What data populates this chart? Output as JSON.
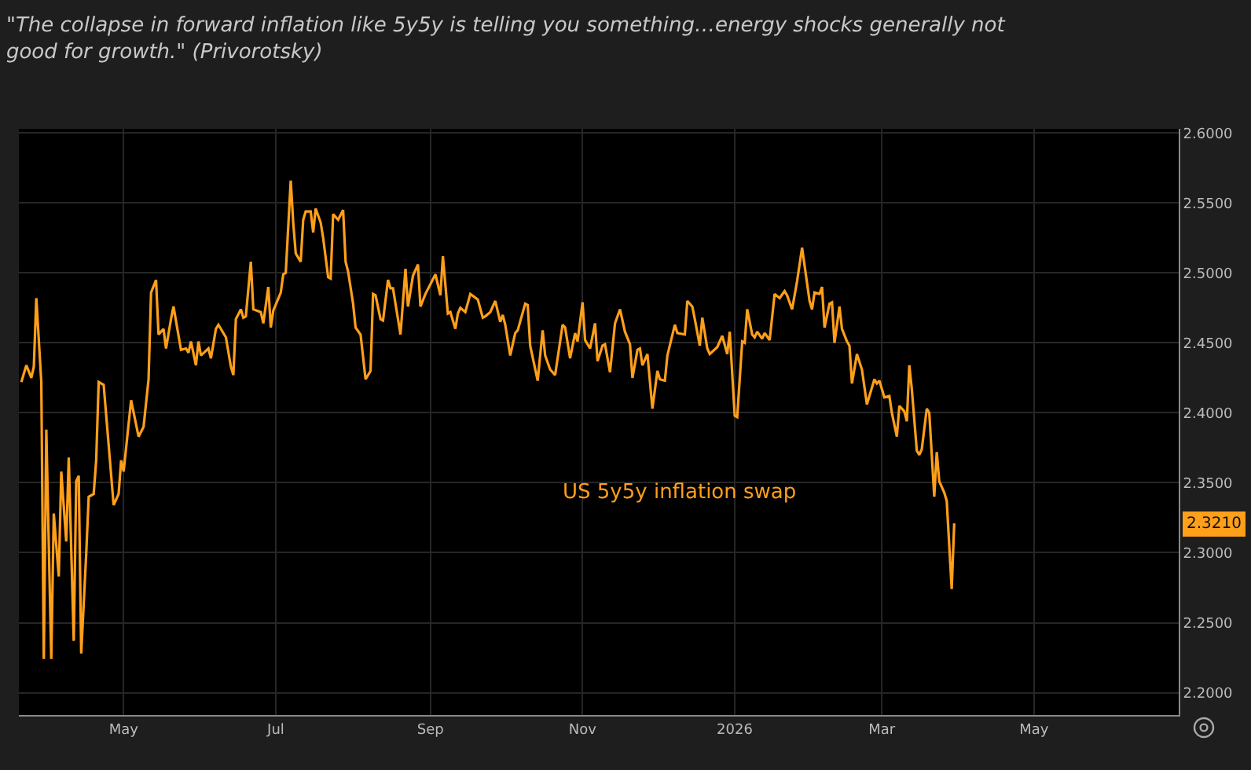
{
  "chart_data": {
    "type": "line",
    "title": "\"The collapse in forward inflation like 5y5y is telling you something…energy shocks generally not good for growth.\" (Privorotsky)",
    "x": [
      "2025-03-21",
      "2025-03-23",
      "2025-03-25",
      "2025-03-26",
      "2025-03-27",
      "2025-03-29",
      "2025-03-30",
      "2025-03-31",
      "2025-04-02",
      "2025-04-03",
      "2025-04-05",
      "2025-04-06",
      "2025-04-08",
      "2025-04-09",
      "2025-04-11",
      "2025-04-12",
      "2025-04-13",
      "2025-04-14",
      "2025-04-16",
      "2025-04-17",
      "2025-04-19",
      "2025-04-20",
      "2025-04-21",
      "2025-04-23",
      "2025-04-27",
      "2025-04-29",
      "2025-04-30",
      "2025-05-01",
      "2025-05-04",
      "2025-05-07",
      "2025-05-09",
      "2025-05-11",
      "2025-05-12",
      "2025-05-14",
      "2025-05-15",
      "2025-05-17",
      "2025-05-18",
      "2025-05-20",
      "2025-05-21",
      "2025-05-24",
      "2025-05-26",
      "2025-05-27",
      "2025-05-28",
      "2025-05-30",
      "2025-05-31",
      "2025-06-01",
      "2025-06-04",
      "2025-06-05",
      "2025-06-07",
      "2025-06-08",
      "2025-06-11",
      "2025-06-13",
      "2025-06-14",
      "2025-06-15",
      "2025-06-17",
      "2025-06-18",
      "2025-06-19",
      "2025-06-21",
      "2025-06-22",
      "2025-06-25",
      "2025-06-26",
      "2025-06-28",
      "2025-06-29",
      "2025-06-30",
      "2025-07-03",
      "2025-07-04",
      "2025-07-05",
      "2025-07-07",
      "2025-07-08",
      "2025-07-09",
      "2025-07-11",
      "2025-07-12",
      "2025-07-13",
      "2025-07-15",
      "2025-07-16",
      "2025-07-17",
      "2025-07-19",
      "2025-07-20",
      "2025-07-22",
      "2025-07-23",
      "2025-07-24",
      "2025-07-26",
      "2025-07-28",
      "2025-07-29",
      "2025-07-30",
      "2025-08-01",
      "2025-08-02",
      "2025-08-04",
      "2025-08-06",
      "2025-08-08",
      "2025-08-09",
      "2025-08-10",
      "2025-08-12",
      "2025-08-13",
      "2025-08-15",
      "2025-08-16",
      "2025-08-17",
      "2025-08-19",
      "2025-08-20",
      "2025-08-22",
      "2025-08-23",
      "2025-08-25",
      "2025-08-27",
      "2025-08-28",
      "2025-08-30",
      "2025-09-03",
      "2025-09-05",
      "2025-09-06",
      "2025-09-08",
      "2025-09-09",
      "2025-09-11",
      "2025-09-12",
      "2025-09-13",
      "2025-09-15",
      "2025-09-17",
      "2025-09-20",
      "2025-09-22",
      "2025-09-23",
      "2025-09-25",
      "2025-09-27",
      "2025-09-29",
      "2025-09-30",
      "2025-10-01",
      "2025-10-03",
      "2025-10-05",
      "2025-10-06",
      "2025-10-09",
      "2025-10-10",
      "2025-10-11",
      "2025-10-14",
      "2025-10-16",
      "2025-10-17",
      "2025-10-19",
      "2025-10-21",
      "2025-10-24",
      "2025-10-25",
      "2025-10-27",
      "2025-10-29",
      "2025-10-30",
      "2025-11-01",
      "2025-11-02",
      "2025-11-04",
      "2025-11-06",
      "2025-11-07",
      "2025-11-09",
      "2025-11-10",
      "2025-11-12",
      "2025-11-14",
      "2025-11-16",
      "2025-11-18",
      "2025-11-20",
      "2025-11-21",
      "2025-11-23",
      "2025-11-24",
      "2025-11-25",
      "2025-11-27",
      "2025-11-29",
      "2025-12-01",
      "2025-12-02",
      "2025-12-04",
      "2025-12-05",
      "2025-12-08",
      "2025-12-09",
      "2025-12-12",
      "2025-12-13",
      "2025-12-15",
      "2025-12-16",
      "2025-12-18",
      "2025-12-19",
      "2025-12-21",
      "2025-12-22",
      "2025-12-25",
      "2025-12-27",
      "2025-12-29",
      "2025-12-30",
      "2026-01-01",
      "2026-01-02",
      "2026-01-04",
      "2026-01-05",
      "2026-01-06",
      "2026-01-08",
      "2026-01-09",
      "2026-01-10",
      "2026-01-12",
      "2026-01-13",
      "2026-01-15",
      "2026-01-17",
      "2026-01-19",
      "2026-01-21",
      "2026-01-22",
      "2026-01-24",
      "2026-01-26",
      "2026-01-28",
      "2026-01-31",
      "2026-02-01",
      "2026-02-02",
      "2026-02-04",
      "2026-02-05",
      "2026-02-06",
      "2026-02-08",
      "2026-02-09",
      "2026-02-10",
      "2026-02-12",
      "2026-02-13",
      "2026-02-15",
      "2026-02-16",
      "2026-02-17",
      "2026-02-19",
      "2026-02-21",
      "2026-02-23",
      "2026-02-24",
      "2026-02-26",
      "2026-02-27",
      "2026-02-28",
      "2026-03-02",
      "2026-03-04",
      "2026-03-05",
      "2026-03-07",
      "2026-03-08",
      "2026-03-10",
      "2026-03-11",
      "2026-03-12",
      "2026-03-13",
      "2026-03-15",
      "2026-03-16",
      "2026-03-17",
      "2026-03-19",
      "2026-03-20",
      "2026-03-22",
      "2026-03-23",
      "2026-03-24",
      "2026-03-26",
      "2026-03-27",
      "2026-03-29",
      "2026-03-30"
    ],
    "series": [
      {
        "name": "US 5y5y inflation swap",
        "color": "#ff9f1a",
        "values": [
          2.422,
          2.434,
          2.425,
          2.433,
          2.482,
          2.422,
          2.224,
          2.388,
          2.224,
          2.328,
          2.283,
          2.358,
          2.308,
          2.368,
          2.237,
          2.351,
          2.355,
          2.228,
          2.299,
          2.34,
          2.342,
          2.366,
          2.422,
          2.42,
          2.334,
          2.342,
          2.366,
          2.358,
          2.409,
          2.383,
          2.39,
          2.424,
          2.486,
          2.495,
          2.456,
          2.46,
          2.446,
          2.467,
          2.476,
          2.445,
          2.446,
          2.443,
          2.451,
          2.434,
          2.451,
          2.441,
          2.446,
          2.439,
          2.46,
          2.463,
          2.454,
          2.433,
          2.427,
          2.467,
          2.474,
          2.468,
          2.469,
          2.508,
          2.474,
          2.472,
          2.464,
          2.49,
          2.461,
          2.473,
          2.486,
          2.499,
          2.5,
          2.566,
          2.536,
          2.514,
          2.508,
          2.538,
          2.544,
          2.544,
          2.529,
          2.546,
          2.536,
          2.525,
          2.497,
          2.496,
          2.542,
          2.538,
          2.545,
          2.508,
          2.501,
          2.478,
          2.461,
          2.456,
          2.424,
          2.43,
          2.485,
          2.484,
          2.467,
          2.466,
          2.495,
          2.489,
          2.489,
          2.467,
          2.456,
          2.503,
          2.476,
          2.498,
          2.506,
          2.476,
          2.485,
          2.499,
          2.484,
          2.512,
          2.471,
          2.472,
          2.46,
          2.471,
          2.475,
          2.472,
          2.485,
          2.481,
          2.468,
          2.469,
          2.472,
          2.48,
          2.465,
          2.47,
          2.463,
          2.441,
          2.457,
          2.459,
          2.478,
          2.477,
          2.448,
          2.423,
          2.459,
          2.441,
          2.431,
          2.427,
          2.463,
          2.461,
          2.439,
          2.457,
          2.451,
          2.479,
          2.452,
          2.446,
          2.464,
          2.437,
          2.448,
          2.449,
          2.429,
          2.464,
          2.474,
          2.458,
          2.449,
          2.425,
          2.445,
          2.446,
          2.434,
          2.442,
          2.403,
          2.43,
          2.424,
          2.423,
          2.441,
          2.463,
          2.457,
          2.456,
          2.48,
          2.476,
          2.467,
          2.448,
          2.468,
          2.446,
          2.442,
          2.447,
          2.455,
          2.442,
          2.458,
          2.398,
          2.397,
          2.451,
          2.45,
          2.474,
          2.456,
          2.454,
          2.458,
          2.453,
          2.457,
          2.452,
          2.485,
          2.482,
          2.487,
          2.484,
          2.474,
          2.494,
          2.518,
          2.48,
          2.474,
          2.486,
          2.485,
          2.49,
          2.461,
          2.478,
          2.479,
          2.45,
          2.476,
          2.46,
          2.451,
          2.448,
          2.421,
          2.442,
          2.431,
          2.406,
          2.412,
          2.424,
          2.421,
          2.423,
          2.411,
          2.412,
          2.4,
          2.383,
          2.405,
          2.401,
          2.394,
          2.434,
          2.417,
          2.373,
          2.37,
          2.374,
          2.403,
          2.4,
          2.34,
          2.372,
          2.351,
          2.343,
          2.337,
          2.274,
          2.321
        ]
      }
    ],
    "xlim": [
      "2025-03-20",
      "2026-06-28"
    ],
    "xticks": [
      {
        "value": "2025-05-01",
        "label": "May"
      },
      {
        "value": "2025-07-01",
        "label": "Jul"
      },
      {
        "value": "2025-09-01",
        "label": "Sep"
      },
      {
        "value": "2025-11-01",
        "label": "Nov"
      },
      {
        "value": "2026-01-01",
        "label": "2026"
      },
      {
        "value": "2026-03-01",
        "label": "Mar"
      },
      {
        "value": "2026-05-01",
        "label": "May"
      }
    ],
    "ylim": [
      2.184,
      2.603
    ],
    "yticks": [
      {
        "value": 2.2,
        "label": "2.2000"
      },
      {
        "value": 2.25,
        "label": "2.2500"
      },
      {
        "value": 2.3,
        "label": "2.3000"
      },
      {
        "value": 2.35,
        "label": "2.3500"
      },
      {
        "value": 2.4,
        "label": "2.4000"
      },
      {
        "value": 2.45,
        "label": "2.4500"
      },
      {
        "value": 2.5,
        "label": "2.5000"
      },
      {
        "value": 2.55,
        "label": "2.5500"
      },
      {
        "value": 2.6,
        "label": "2.6000"
      }
    ],
    "annotations": [
      {
        "text": "2.3210",
        "y": 2.321
      }
    ],
    "grid": true,
    "legend": false,
    "marker": "none",
    "line_style": "solid"
  }
}
